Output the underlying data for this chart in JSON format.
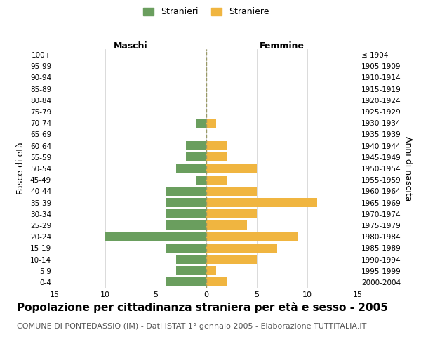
{
  "age_groups": [
    "100+",
    "95-99",
    "90-94",
    "85-89",
    "80-84",
    "75-79",
    "70-74",
    "65-69",
    "60-64",
    "55-59",
    "50-54",
    "45-49",
    "40-44",
    "35-39",
    "30-34",
    "25-29",
    "20-24",
    "15-19",
    "10-14",
    "5-9",
    "0-4"
  ],
  "birth_years": [
    "≤ 1904",
    "1905-1909",
    "1910-1914",
    "1915-1919",
    "1920-1924",
    "1925-1929",
    "1930-1934",
    "1935-1939",
    "1940-1944",
    "1945-1949",
    "1950-1954",
    "1955-1959",
    "1960-1964",
    "1965-1969",
    "1970-1974",
    "1975-1979",
    "1980-1984",
    "1985-1989",
    "1990-1994",
    "1995-1999",
    "2000-2004"
  ],
  "males": [
    0,
    0,
    0,
    0,
    0,
    0,
    1,
    0,
    2,
    2,
    3,
    1,
    4,
    4,
    4,
    4,
    10,
    4,
    3,
    3,
    4
  ],
  "females": [
    0,
    0,
    0,
    0,
    0,
    0,
    1,
    0,
    2,
    2,
    5,
    2,
    5,
    11,
    5,
    4,
    9,
    7,
    5,
    1,
    2
  ],
  "male_color": "#6a9e5e",
  "female_color": "#f0b540",
  "bar_height": 0.8,
  "xlim": 15,
  "title": "Popolazione per cittadinanza straniera per età e sesso - 2005",
  "subtitle": "COMUNE DI PONTEDASSIO (IM) - Dati ISTAT 1° gennaio 2005 - Elaborazione TUTTITALIA.IT",
  "ylabel_left": "Fasce di età",
  "ylabel_right": "Anni di nascita",
  "legend_male": "Stranieri",
  "legend_female": "Straniere",
  "xlabel_maschi": "Maschi",
  "xlabel_femmine": "Femmine",
  "grid_color": "#cccccc",
  "bg_color": "#ffffff",
  "dashed_line_color": "#999966",
  "title_fontsize": 11,
  "subtitle_fontsize": 8
}
